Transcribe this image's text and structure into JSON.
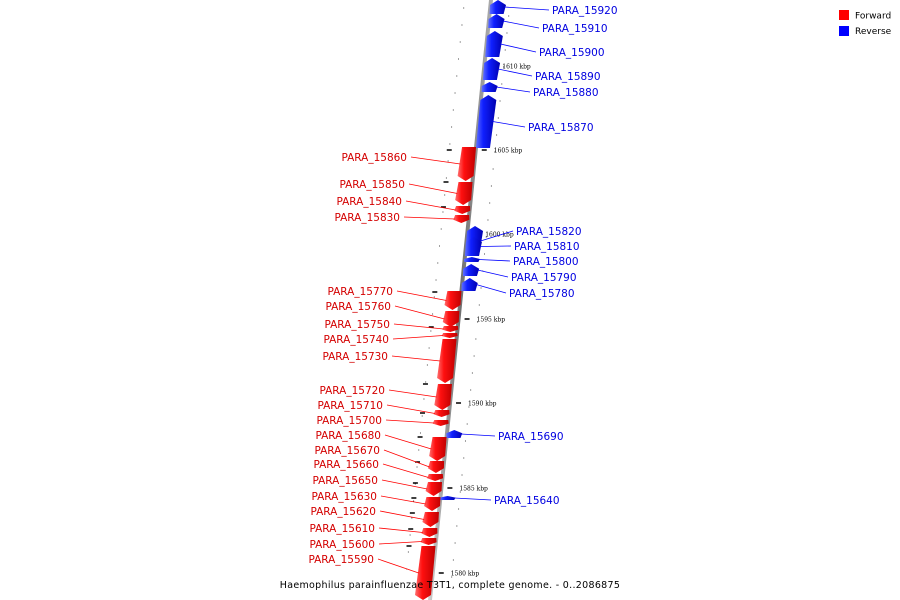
{
  "caption": "Haemophilus parainfluenzae T3T1, complete genome. - 0..2086875",
  "legend": {
    "forward_label": "Forward",
    "reverse_label": "Reverse",
    "forward_color": "#ff0000",
    "reverse_color": "#0000ff"
  },
  "scale_ticks": [
    {
      "label": "1610 kbp"
    },
    {
      "label": "1605 kbp"
    },
    {
      "label": "1600 kbp"
    },
    {
      "label": "1595 kbp"
    },
    {
      "label": "1590 kbp"
    },
    {
      "label": "1585 kbp"
    },
    {
      "label": "1580 kbp"
    }
  ],
  "reverse_genes": [
    {
      "name": "PARA_15920"
    },
    {
      "name": "PARA_15910"
    },
    {
      "name": "PARA_15900"
    },
    {
      "name": "PARA_15890"
    },
    {
      "name": "PARA_15880"
    },
    {
      "name": "PARA_15870"
    },
    {
      "name": "PARA_15820"
    },
    {
      "name": "PARA_15810"
    },
    {
      "name": "PARA_15800"
    },
    {
      "name": "PARA_15790"
    },
    {
      "name": "PARA_15780"
    },
    {
      "name": "PARA_15690"
    },
    {
      "name": "PARA_15640"
    }
  ],
  "forward_genes": [
    {
      "name": "PARA_15860"
    },
    {
      "name": "PARA_15850"
    },
    {
      "name": "PARA_15840"
    },
    {
      "name": "PARA_15830"
    },
    {
      "name": "PARA_15770"
    },
    {
      "name": "PARA_15760"
    },
    {
      "name": "PARA_15750"
    },
    {
      "name": "PARA_15740"
    },
    {
      "name": "PARA_15730"
    },
    {
      "name": "PARA_15720"
    },
    {
      "name": "PARA_15710"
    },
    {
      "name": "PARA_15700"
    },
    {
      "name": "PARA_15680"
    },
    {
      "name": "PARA_15670"
    },
    {
      "name": "PARA_15660"
    },
    {
      "name": "PARA_15650"
    },
    {
      "name": "PARA_15630"
    },
    {
      "name": "PARA_15620"
    },
    {
      "name": "PARA_15610"
    },
    {
      "name": "PARA_15600"
    },
    {
      "name": "PARA_15590"
    }
  ]
}
